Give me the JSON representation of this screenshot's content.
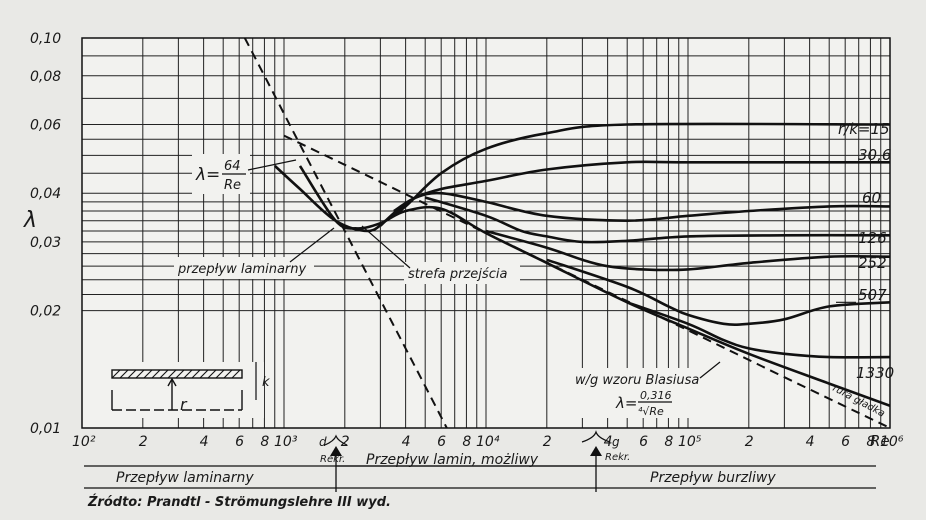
{
  "chart_data": {
    "type": "line",
    "xscale": "log",
    "yscale": "log",
    "xlim": [
      100,
      1000000
    ],
    "ylim": [
      0.01,
      0.1
    ],
    "xlabel": "Re",
    "ylabel": "λ",
    "grid": true,
    "y_ticks": [
      "0,10",
      "0,08",
      "0,06",
      "0,04",
      "0,03",
      "0,02",
      "0,01"
    ],
    "x_ticks": [
      "10²",
      "2",
      "4",
      "6",
      "8",
      "10³",
      "2",
      "4",
      "6",
      "8",
      "10⁴",
      "2",
      "4",
      "6",
      "8",
      "10⁵",
      "2",
      "4",
      "6",
      "8",
      "10⁶"
    ],
    "series": [
      {
        "name": "r/k=15",
        "x": [
          900,
          1200,
          1800,
          2600,
          3200,
          4000,
          6000,
          10000,
          20000,
          50000,
          1000000
        ],
        "y": [
          0.047,
          0.041,
          0.034,
          0.032,
          0.034,
          0.037,
          0.045,
          0.052,
          0.057,
          0.06,
          0.06
        ]
      },
      {
        "name": "30,6",
        "x": [
          3000,
          3600,
          4500,
          6000,
          10000,
          20000,
          50000,
          100000,
          1000000
        ],
        "y": [
          0.033,
          0.036,
          0.039,
          0.041,
          0.043,
          0.046,
          0.048,
          0.048,
          0.048
        ]
      },
      {
        "name": "60",
        "x": [
          3500,
          4500,
          6000,
          10000,
          20000,
          50000,
          100000,
          200000,
          500000,
          1000000
        ],
        "y": [
          0.036,
          0.039,
          0.04,
          0.038,
          0.035,
          0.034,
          0.035,
          0.036,
          0.037,
          0.037
        ]
      },
      {
        "name": "126",
        "x": [
          5000,
          10000,
          15000,
          20000,
          30000,
          50000,
          100000,
          300000,
          1000000
        ],
        "y": [
          0.039,
          0.035,
          0.032,
          0.031,
          0.03,
          0.0302,
          0.031,
          0.0312,
          0.0312
        ]
      },
      {
        "name": "252",
        "x": [
          10000,
          20000,
          30000,
          40000,
          60000,
          100000,
          200000,
          500000,
          1000000
        ],
        "y": [
          0.032,
          0.029,
          0.027,
          0.026,
          0.0255,
          0.0255,
          0.0265,
          0.0275,
          0.0275
        ]
      },
      {
        "name": "507",
        "x": [
          20000,
          50000,
          80000,
          100000,
          150000,
          200000,
          300000,
          500000,
          1000000
        ],
        "y": [
          0.027,
          0.023,
          0.0205,
          0.0195,
          0.0185,
          0.0185,
          0.019,
          0.0205,
          0.021
        ]
      },
      {
        "name": "1330",
        "x": [
          50000,
          100000,
          150000,
          200000,
          300000,
          500000,
          1000000
        ],
        "y": [
          0.021,
          0.0185,
          0.0168,
          0.016,
          0.0155,
          0.0152,
          0.0152
        ]
      },
      {
        "name": "rura gładka",
        "x": [
          1200,
          1800,
          2300,
          3000,
          4000,
          6000,
          10000,
          20000,
          50000,
          100000,
          200000,
          500000,
          1000000
        ],
        "y": [
          0.047,
          0.034,
          0.0325,
          0.0335,
          0.036,
          0.0365,
          0.0316,
          0.0265,
          0.021,
          0.018,
          0.0155,
          0.013,
          0.0114
        ]
      },
      {
        "name": "λ=64/Re",
        "x": [
          640,
          900,
          1200,
          2000,
          3000,
          4000,
          6400
        ],
        "y": [
          0.1,
          0.0711,
          0.0533,
          0.032,
          0.0213,
          0.016,
          0.01
        ]
      },
      {
        "name": "w/g wzoru Blasiusa",
        "x": [
          1000,
          2000,
          5000,
          10000,
          30000,
          100000,
          300000,
          1000000
        ],
        "y": [
          0.0562,
          0.0473,
          0.0376,
          0.0316,
          0.024,
          0.0178,
          0.0135,
          0.01
        ]
      }
    ],
    "curve_labels": [
      "r/k=15",
      "30,6",
      "60",
      "126",
      "252",
      "507",
      "1330",
      "rura gładka"
    ],
    "annotations": {
      "laminar_formula_lhs": "λ=",
      "laminar_formula_num": "64",
      "laminar_formula_den": "Re",
      "laminar_flow": "przepływ laminarny",
      "transition_zone": "strefa przejścia",
      "blasius": "w/g wzoru Blasiusa",
      "blasius_lhs": "λ=",
      "blasius_num": "0,316",
      "blasius_den": "⁴√Re",
      "marker_d": "d",
      "marker_g": "g",
      "rekr": "Rekr.",
      "inset_r": "r",
      "inset_k": "k"
    },
    "regions": [
      "Przepływ laminarny",
      "Przepływ lamin, możliwy",
      "Przepływ burzliwy"
    ]
  },
  "source": "Źródto: Prandtl - Strömungslehre III wyd."
}
